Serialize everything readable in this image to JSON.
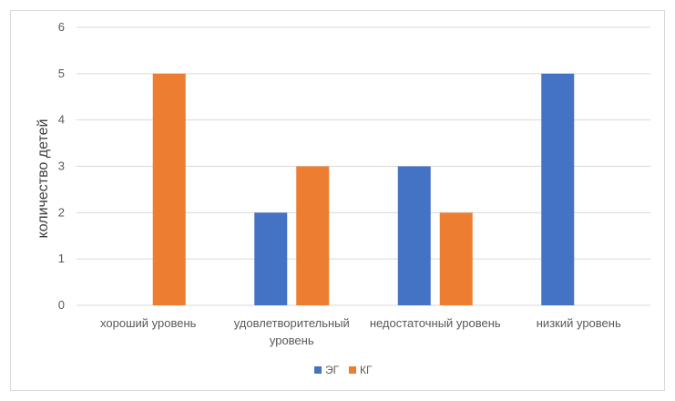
{
  "chart_data": {
    "type": "bar",
    "ylabel": "количество детей",
    "xlabel": "",
    "ylim": [
      0,
      6
    ],
    "yticks": [
      0,
      1,
      2,
      3,
      4,
      5,
      6
    ],
    "grid": true,
    "legend": "bottom",
    "categories": [
      [
        "хороший уровень"
      ],
      [
        "удовлетворительный",
        "уровень"
      ],
      [
        "недостаточный уровень"
      ],
      [
        "низкий уровень"
      ]
    ],
    "series": [
      {
        "name": "ЭГ",
        "color": "#4472c4",
        "values": [
          0,
          2,
          3,
          5
        ]
      },
      {
        "name": "КГ",
        "color": "#ed7d31",
        "values": [
          5,
          3,
          2,
          0
        ]
      }
    ]
  }
}
